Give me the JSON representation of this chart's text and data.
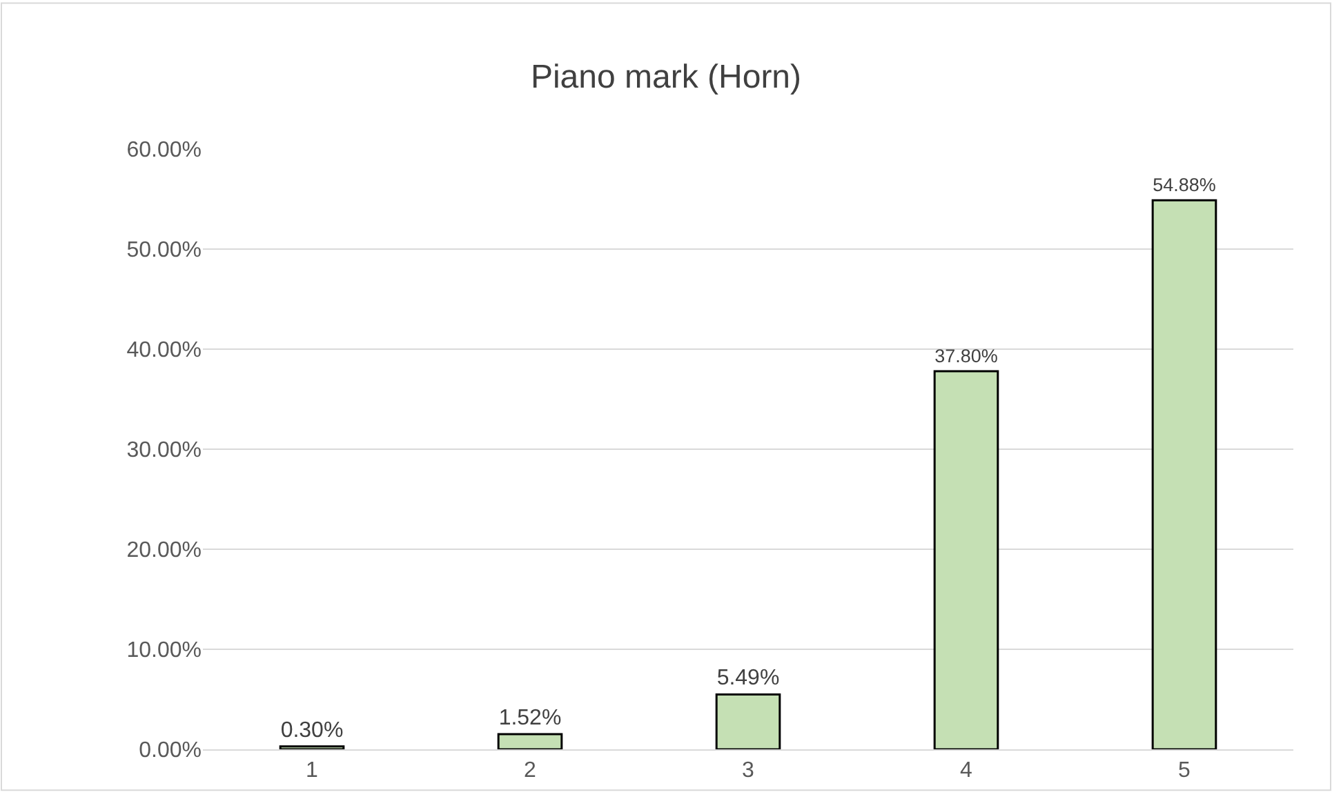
{
  "chart_data": {
    "type": "bar",
    "title": "Piano mark (Horn)",
    "categories": [
      "1",
      "2",
      "3",
      "4",
      "5"
    ],
    "values": [
      0.3,
      1.52,
      5.49,
      37.8,
      54.88
    ],
    "value_labels": [
      "0.30%",
      "1.52%",
      "5.49%",
      "37.80%",
      "54.88%"
    ],
    "color": "#c5e0b4",
    "ylim": [
      0,
      60
    ],
    "yticks": [
      {
        "value": 0,
        "label": "0.00%"
      },
      {
        "value": 10,
        "label": "10.00%"
      },
      {
        "value": 20,
        "label": "20.00%"
      },
      {
        "value": 30,
        "label": "30.00%"
      },
      {
        "value": 40,
        "label": "40.00%"
      },
      {
        "value": 50,
        "label": "50.00%"
      },
      {
        "value": 60,
        "label": "60.00%"
      }
    ],
    "grid": "y",
    "legend": false
  }
}
